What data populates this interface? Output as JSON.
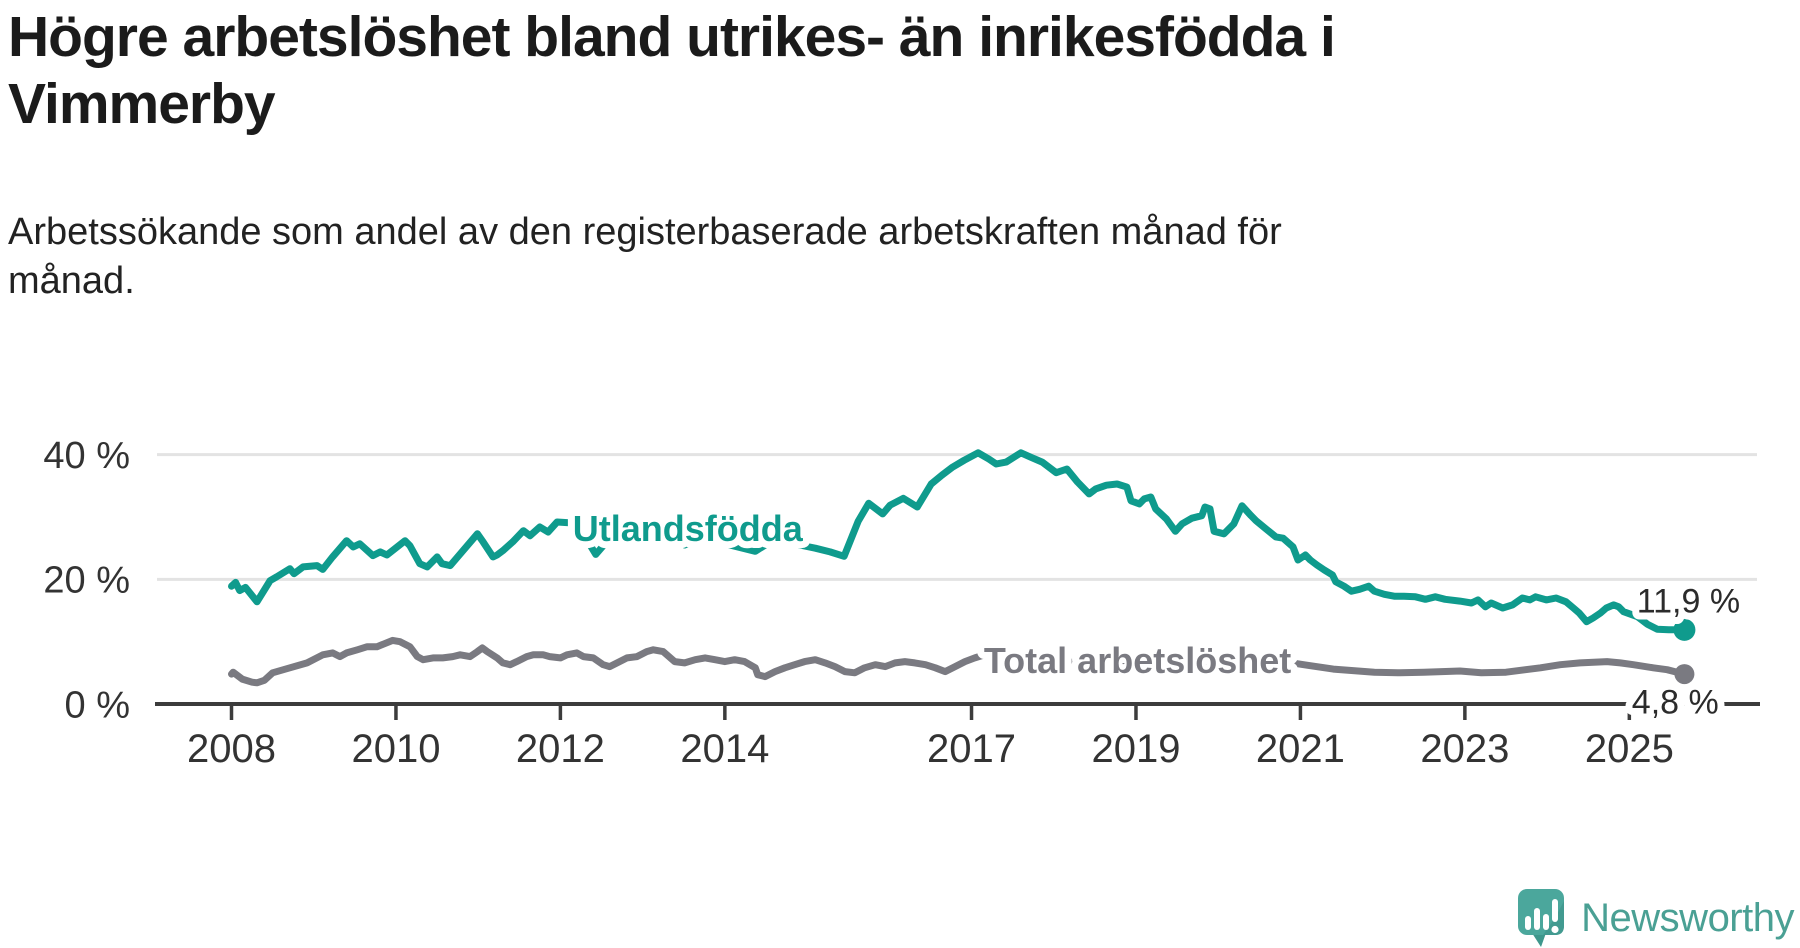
{
  "header": {
    "title": "Högre arbetslöshet bland utrikes- än inrikesfödda i Vimmerby",
    "subtitle": "Arbetssökande som andel av den registerbaserade arbetskraften månad för månad."
  },
  "logo": {
    "text": "Newsworthy"
  },
  "colors": {
    "foreign_born_line": "#0f9b8d",
    "total_line": "#7a7a81",
    "axis": "#3c3c3c",
    "grid": "#e3e3e3",
    "tick_label": "#333333",
    "value_label": "#2b2b2b",
    "logo_teal": "#4aa094"
  },
  "chart_data": {
    "type": "line",
    "title": "Högre arbetslöshet bland utrikes- än inrikesfödda i Vimmerby",
    "xlabel": "",
    "ylabel": "",
    "x_axis": {
      "ticks": [
        2008,
        2010,
        2012,
        2014,
        2017,
        2019,
        2021,
        2023,
        2025
      ],
      "range": [
        2008,
        2025.85
      ]
    },
    "y_axis": {
      "ticks": [
        {
          "v": 0,
          "label": "0 %"
        },
        {
          "v": 20,
          "label": "20 %"
        },
        {
          "v": 40,
          "label": "40 %"
        }
      ],
      "range": [
        0,
        44
      ],
      "grid": true
    },
    "legend_position": "inline-labels",
    "series": [
      {
        "name": "Utlandsfödda",
        "color": "#0f9b8d",
        "label_anchor": {
          "year": 2012.15,
          "value": 28.2
        },
        "end_label": {
          "text": "11,9 %",
          "year": 2025.09,
          "value": 16.6
        },
        "end_value": "11,9 %",
        "points": [
          [
            2008.0,
            18.9
          ],
          [
            2008.05,
            19.5
          ],
          [
            2008.1,
            18.2
          ],
          [
            2008.17,
            18.7
          ],
          [
            2008.31,
            16.4
          ],
          [
            2008.47,
            19.8
          ],
          [
            2008.55,
            20.4
          ],
          [
            2008.71,
            21.7
          ],
          [
            2008.76,
            20.9
          ],
          [
            2008.87,
            22.0
          ],
          [
            2009.04,
            22.2
          ],
          [
            2009.11,
            21.6
          ],
          [
            2009.23,
            23.6
          ],
          [
            2009.4,
            26.2
          ],
          [
            2009.48,
            25.2
          ],
          [
            2009.56,
            25.7
          ],
          [
            2009.72,
            23.8
          ],
          [
            2009.81,
            24.4
          ],
          [
            2009.89,
            23.9
          ],
          [
            2010.11,
            26.2
          ],
          [
            2010.17,
            25.4
          ],
          [
            2010.29,
            22.5
          ],
          [
            2010.38,
            22.0
          ],
          [
            2010.5,
            23.6
          ],
          [
            2010.56,
            22.5
          ],
          [
            2010.66,
            22.2
          ],
          [
            2010.99,
            27.3
          ],
          [
            2011.06,
            26.0
          ],
          [
            2011.18,
            23.6
          ],
          [
            2011.23,
            23.9
          ],
          [
            2011.3,
            24.6
          ],
          [
            2011.42,
            26.0
          ],
          [
            2011.55,
            27.8
          ],
          [
            2011.63,
            27.0
          ],
          [
            2011.75,
            28.4
          ],
          [
            2011.85,
            27.6
          ],
          [
            2011.96,
            29.2
          ],
          [
            2012.2,
            29.0
          ],
          [
            2012.43,
            24.0
          ],
          [
            2012.6,
            26.6
          ],
          [
            2012.79,
            27.9
          ],
          [
            2012.97,
            27.4
          ],
          [
            2013.15,
            26.3
          ],
          [
            2013.33,
            27.1
          ],
          [
            2013.51,
            25.5
          ],
          [
            2013.7,
            26.6
          ],
          [
            2013.88,
            27.4
          ],
          [
            2014.06,
            25.5
          ],
          [
            2014.37,
            24.5
          ],
          [
            2014.55,
            26.0
          ],
          [
            2014.73,
            26.6
          ],
          [
            2014.91,
            25.5
          ],
          [
            2015.1,
            25.0
          ],
          [
            2015.28,
            24.4
          ],
          [
            2015.45,
            23.7
          ],
          [
            2015.62,
            29.3
          ],
          [
            2015.75,
            32.2
          ],
          [
            2015.92,
            30.5
          ],
          [
            2016.01,
            31.9
          ],
          [
            2016.17,
            33.0
          ],
          [
            2016.34,
            31.6
          ],
          [
            2016.51,
            35.3
          ],
          [
            2016.64,
            36.7
          ],
          [
            2016.77,
            38.0
          ],
          [
            2016.91,
            39.1
          ],
          [
            2017.08,
            40.3
          ],
          [
            2017.21,
            39.3
          ],
          [
            2017.3,
            38.5
          ],
          [
            2017.42,
            38.8
          ],
          [
            2017.6,
            40.3
          ],
          [
            2017.72,
            39.6
          ],
          [
            2017.86,
            38.8
          ],
          [
            2018.03,
            37.1
          ],
          [
            2018.16,
            37.7
          ],
          [
            2018.29,
            35.6
          ],
          [
            2018.43,
            33.7
          ],
          [
            2018.51,
            34.5
          ],
          [
            2018.64,
            35.1
          ],
          [
            2018.77,
            35.3
          ],
          [
            2018.89,
            34.8
          ],
          [
            2018.94,
            32.6
          ],
          [
            2019.04,
            32.1
          ],
          [
            2019.1,
            32.9
          ],
          [
            2019.18,
            33.2
          ],
          [
            2019.24,
            31.3
          ],
          [
            2019.37,
            29.7
          ],
          [
            2019.48,
            27.7
          ],
          [
            2019.56,
            28.9
          ],
          [
            2019.68,
            29.8
          ],
          [
            2019.8,
            30.2
          ],
          [
            2019.84,
            31.6
          ],
          [
            2019.9,
            31.3
          ],
          [
            2019.95,
            27.7
          ],
          [
            2020.07,
            27.3
          ],
          [
            2020.19,
            28.9
          ],
          [
            2020.29,
            31.8
          ],
          [
            2020.4,
            30.2
          ],
          [
            2020.46,
            29.4
          ],
          [
            2020.57,
            28.2
          ],
          [
            2020.7,
            26.8
          ],
          [
            2020.79,
            26.6
          ],
          [
            2020.91,
            25.2
          ],
          [
            2020.97,
            23.1
          ],
          [
            2021.06,
            23.9
          ],
          [
            2021.12,
            23.1
          ],
          [
            2021.2,
            22.3
          ],
          [
            2021.29,
            21.5
          ],
          [
            2021.39,
            20.7
          ],
          [
            2021.43,
            19.6
          ],
          [
            2021.53,
            18.9
          ],
          [
            2021.62,
            18.1
          ],
          [
            2021.72,
            18.4
          ],
          [
            2021.83,
            18.9
          ],
          [
            2021.9,
            18.1
          ],
          [
            2022.02,
            17.6
          ],
          [
            2022.14,
            17.3
          ],
          [
            2022.26,
            17.3
          ],
          [
            2022.4,
            17.2
          ],
          [
            2022.52,
            16.8
          ],
          [
            2022.64,
            17.2
          ],
          [
            2022.76,
            16.8
          ],
          [
            2022.94,
            16.5
          ],
          [
            2023.08,
            16.2
          ],
          [
            2023.16,
            16.7
          ],
          [
            2023.25,
            15.6
          ],
          [
            2023.32,
            16.2
          ],
          [
            2023.46,
            15.4
          ],
          [
            2023.58,
            15.9
          ],
          [
            2023.7,
            17.0
          ],
          [
            2023.79,
            16.7
          ],
          [
            2023.86,
            17.2
          ],
          [
            2023.99,
            16.7
          ],
          [
            2024.11,
            17.0
          ],
          [
            2024.23,
            16.4
          ],
          [
            2024.32,
            15.4
          ],
          [
            2024.39,
            14.6
          ],
          [
            2024.48,
            13.2
          ],
          [
            2024.56,
            13.8
          ],
          [
            2024.65,
            14.6
          ],
          [
            2024.72,
            15.4
          ],
          [
            2024.81,
            15.9
          ],
          [
            2024.87,
            15.6
          ],
          [
            2024.93,
            14.8
          ],
          [
            2025.1,
            14.0
          ],
          [
            2025.22,
            12.8
          ],
          [
            2025.34,
            12.0
          ],
          [
            2025.48,
            11.9
          ],
          [
            2025.67,
            11.9
          ]
        ]
      },
      {
        "name": "Total arbetslöshet",
        "color": "#7a7a81",
        "label_anchor": {
          "year": 2017.15,
          "value": 7.0
        },
        "end_label": {
          "text": "4,8 %",
          "year": 2025.03,
          "value": 0.35
        },
        "end_value": "4,8 %",
        "points": [
          [
            2008.0,
            4.8
          ],
          [
            2008.02,
            5.1
          ],
          [
            2008.13,
            4.0
          ],
          [
            2008.25,
            3.5
          ],
          [
            2008.31,
            3.4
          ],
          [
            2008.4,
            3.8
          ],
          [
            2008.5,
            5.0
          ],
          [
            2008.71,
            5.8
          ],
          [
            2008.92,
            6.6
          ],
          [
            2009.11,
            7.9
          ],
          [
            2009.23,
            8.2
          ],
          [
            2009.32,
            7.6
          ],
          [
            2009.4,
            8.2
          ],
          [
            2009.53,
            8.7
          ],
          [
            2009.65,
            9.2
          ],
          [
            2009.77,
            9.2
          ],
          [
            2009.96,
            10.2
          ],
          [
            2010.05,
            10.0
          ],
          [
            2010.17,
            9.2
          ],
          [
            2010.26,
            7.6
          ],
          [
            2010.33,
            7.1
          ],
          [
            2010.45,
            7.4
          ],
          [
            2010.57,
            7.4
          ],
          [
            2010.69,
            7.6
          ],
          [
            2010.78,
            7.9
          ],
          [
            2010.9,
            7.6
          ],
          [
            2010.99,
            8.4
          ],
          [
            2011.05,
            9.0
          ],
          [
            2011.11,
            8.4
          ],
          [
            2011.23,
            7.4
          ],
          [
            2011.3,
            6.6
          ],
          [
            2011.39,
            6.3
          ],
          [
            2011.47,
            6.8
          ],
          [
            2011.59,
            7.6
          ],
          [
            2011.67,
            7.9
          ],
          [
            2011.79,
            7.9
          ],
          [
            2011.87,
            7.6
          ],
          [
            2012.0,
            7.4
          ],
          [
            2012.08,
            7.9
          ],
          [
            2012.2,
            8.2
          ],
          [
            2012.28,
            7.6
          ],
          [
            2012.4,
            7.4
          ],
          [
            2012.52,
            6.3
          ],
          [
            2012.6,
            6.0
          ],
          [
            2012.72,
            6.8
          ],
          [
            2012.81,
            7.4
          ],
          [
            2012.93,
            7.6
          ],
          [
            2013.05,
            8.4
          ],
          [
            2013.13,
            8.7
          ],
          [
            2013.25,
            8.4
          ],
          [
            2013.39,
            6.8
          ],
          [
            2013.51,
            6.6
          ],
          [
            2013.64,
            7.1
          ],
          [
            2013.76,
            7.4
          ],
          [
            2013.88,
            7.1
          ],
          [
            2014.0,
            6.8
          ],
          [
            2014.12,
            7.1
          ],
          [
            2014.24,
            6.8
          ],
          [
            2014.37,
            5.8
          ],
          [
            2014.4,
            4.7
          ],
          [
            2014.49,
            4.4
          ],
          [
            2014.61,
            5.2
          ],
          [
            2014.73,
            5.8
          ],
          [
            2014.85,
            6.3
          ],
          [
            2014.97,
            6.8
          ],
          [
            2015.1,
            7.1
          ],
          [
            2015.22,
            6.6
          ],
          [
            2015.34,
            6.0
          ],
          [
            2015.46,
            5.2
          ],
          [
            2015.58,
            5.0
          ],
          [
            2015.7,
            5.8
          ],
          [
            2015.83,
            6.3
          ],
          [
            2015.95,
            6.0
          ],
          [
            2016.07,
            6.6
          ],
          [
            2016.19,
            6.8
          ],
          [
            2016.31,
            6.6
          ],
          [
            2016.44,
            6.3
          ],
          [
            2016.56,
            5.8
          ],
          [
            2016.68,
            5.2
          ],
          [
            2016.8,
            6.0
          ],
          [
            2016.92,
            6.8
          ],
          [
            2017.04,
            7.4
          ],
          [
            2017.16,
            7.9
          ],
          [
            2017.25,
            8.2
          ],
          [
            2017.32,
            7.6
          ],
          [
            2017.41,
            7.4
          ],
          [
            2017.6,
            7.7
          ],
          [
            2017.8,
            7.3
          ],
          [
            2018.0,
            7.0
          ],
          [
            2018.3,
            6.6
          ],
          [
            2018.6,
            6.9
          ],
          [
            2018.9,
            6.3
          ],
          [
            2019.2,
            6.0
          ],
          [
            2019.5,
            6.2
          ],
          [
            2019.8,
            5.8
          ],
          [
            2020.1,
            6.0
          ],
          [
            2020.35,
            7.6
          ],
          [
            2020.6,
            7.2
          ],
          [
            2020.9,
            6.6
          ],
          [
            2021.1,
            6.2
          ],
          [
            2021.4,
            5.6
          ],
          [
            2021.7,
            5.3
          ],
          [
            2021.9,
            5.1
          ],
          [
            2022.21,
            5.0
          ],
          [
            2022.5,
            5.1
          ],
          [
            2022.94,
            5.3
          ],
          [
            2023.2,
            5.0
          ],
          [
            2023.5,
            5.1
          ],
          [
            2023.92,
            5.8
          ],
          [
            2024.16,
            6.3
          ],
          [
            2024.4,
            6.6
          ],
          [
            2024.73,
            6.8
          ],
          [
            2024.89,
            6.6
          ],
          [
            2025.05,
            6.3
          ],
          [
            2025.29,
            5.8
          ],
          [
            2025.46,
            5.5
          ],
          [
            2025.67,
            4.8
          ]
        ]
      }
    ]
  }
}
